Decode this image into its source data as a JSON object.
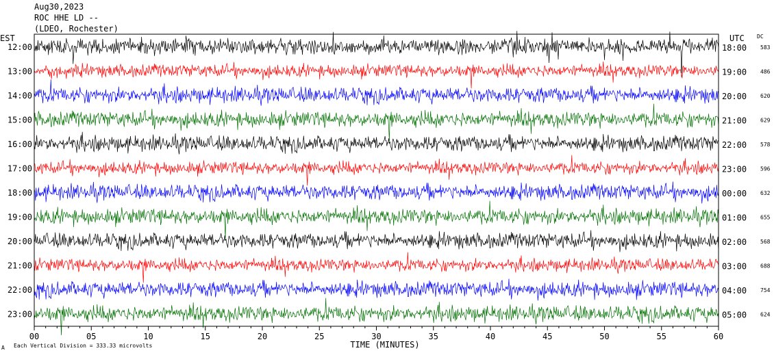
{
  "header": {
    "date": "Aug30,2023",
    "station": "ROC HHE LD --",
    "network": "(LDEO, Rochester)"
  },
  "labels": {
    "left_zone": "EST",
    "right_zone": "UTC",
    "dc_title": "DC",
    "x_axis_title": "TIME (MINUTES)",
    "footnote_mark": "A",
    "vertical_division": "Each Vertical Division =  333.33 microvolts"
  },
  "colors": {
    "cycle": [
      "#000000",
      "#ff0000",
      "#0000ff",
      "#007000"
    ],
    "frame": "#000000"
  },
  "chart_data": {
    "type": "line",
    "description_kind": "helicorder seismogram, 12 hourly traces",
    "xlim": [
      0,
      60
    ],
    "x_ticks": [
      "00",
      "05",
      "10",
      "15",
      "20",
      "25",
      "30",
      "35",
      "40",
      "45",
      "50",
      "55",
      "60"
    ],
    "rows": [
      {
        "est": "12:00",
        "utc": "18:00",
        "dc": "583",
        "color": "#000000"
      },
      {
        "est": "13:00",
        "utc": "19:00",
        "dc": "486",
        "color": "#ff0000"
      },
      {
        "est": "14:00",
        "utc": "20:00",
        "dc": "620",
        "color": "#0000ff"
      },
      {
        "est": "15:00",
        "utc": "21:00",
        "dc": "629",
        "color": "#007000"
      },
      {
        "est": "16:00",
        "utc": "22:00",
        "dc": "578",
        "color": "#000000"
      },
      {
        "est": "17:00",
        "utc": "23:00",
        "dc": "596",
        "color": "#ff0000"
      },
      {
        "est": "18:00",
        "utc": "00:00",
        "dc": "632",
        "color": "#0000ff"
      },
      {
        "est": "19:00",
        "utc": "01:00",
        "dc": "655",
        "color": "#007000"
      },
      {
        "est": "20:00",
        "utc": "02:00",
        "dc": "568",
        "color": "#000000"
      },
      {
        "est": "21:00",
        "utc": "03:00",
        "dc": "688",
        "color": "#ff0000"
      },
      {
        "est": "22:00",
        "utc": "04:00",
        "dc": "754",
        "color": "#0000ff"
      },
      {
        "est": "23:00",
        "utc": "05:00",
        "dc": "624",
        "color": "#007000"
      }
    ]
  }
}
